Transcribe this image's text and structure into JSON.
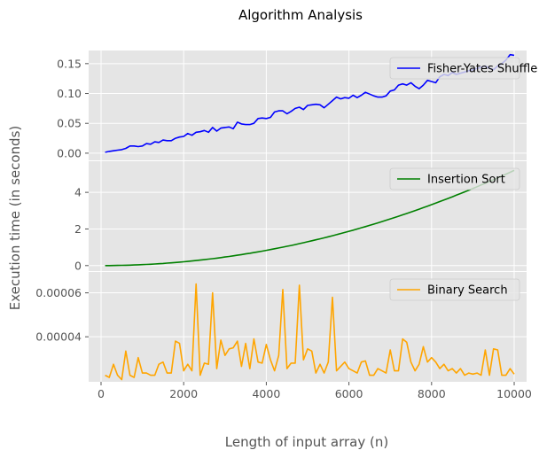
{
  "chart_data": {
    "title": "Algorithm Analysis",
    "xlabel": "Length of input array (n)",
    "ylabel": "Execution time (in seconds)",
    "type": "line",
    "grid": true,
    "shared_x": {
      "xlim": [
        -300,
        10300
      ],
      "ticks": [
        0,
        2000,
        4000,
        6000,
        8000,
        10000
      ],
      "tick_labels": [
        "0",
        "2000",
        "4000",
        "6000",
        "8000",
        "10000"
      ]
    },
    "x": [
      100,
      200,
      300,
      400,
      500,
      600,
      700,
      800,
      900,
      1000,
      1100,
      1200,
      1300,
      1400,
      1500,
      1600,
      1700,
      1800,
      1900,
      2000,
      2100,
      2200,
      2300,
      2400,
      2500,
      2600,
      2700,
      2800,
      2900,
      3000,
      3100,
      3200,
      3300,
      3400,
      3500,
      3600,
      3700,
      3800,
      3900,
      4000,
      4100,
      4200,
      4300,
      4400,
      4500,
      4600,
      4700,
      4800,
      4900,
      5000,
      5100,
      5200,
      5300,
      5400,
      5500,
      5600,
      5700,
      5800,
      5900,
      6000,
      6100,
      6200,
      6300,
      6400,
      6500,
      6600,
      6700,
      6800,
      6900,
      7000,
      7100,
      7200,
      7300,
      7400,
      7500,
      7600,
      7700,
      7800,
      7900,
      8000,
      8100,
      8200,
      8300,
      8400,
      8500,
      8600,
      8700,
      8800,
      8900,
      9000,
      9100,
      9200,
      9300,
      9400,
      9500,
      9600,
      9700,
      9800,
      9900,
      10000
    ],
    "panels": [
      {
        "series_name": "Fisher-Yates Shuffle",
        "color": "#0000ff",
        "legend_position": "upper right",
        "ylim": [
          -0.012,
          0.172
        ],
        "ticks": [
          0.0,
          0.05,
          0.1,
          0.15
        ],
        "tick_labels": [
          "0.00",
          "0.05",
          "0.10",
          "0.15"
        ],
        "values": [
          0.0015,
          0.003,
          0.004,
          0.005,
          0.006,
          0.008,
          0.012,
          0.012,
          0.011,
          0.012,
          0.016,
          0.015,
          0.019,
          0.018,
          0.022,
          0.021,
          0.021,
          0.025,
          0.027,
          0.028,
          0.033,
          0.03,
          0.035,
          0.036,
          0.038,
          0.035,
          0.043,
          0.037,
          0.042,
          0.043,
          0.044,
          0.041,
          0.052,
          0.049,
          0.048,
          0.048,
          0.05,
          0.058,
          0.059,
          0.058,
          0.06,
          0.069,
          0.071,
          0.071,
          0.066,
          0.07,
          0.075,
          0.077,
          0.073,
          0.08,
          0.081,
          0.082,
          0.081,
          0.076,
          0.082,
          0.088,
          0.094,
          0.091,
          0.093,
          0.092,
          0.097,
          0.093,
          0.097,
          0.102,
          0.099,
          0.096,
          0.094,
          0.094,
          0.096,
          0.104,
          0.106,
          0.114,
          0.116,
          0.114,
          0.118,
          0.112,
          0.108,
          0.114,
          0.122,
          0.12,
          0.118,
          0.128,
          0.132,
          0.13,
          0.135,
          0.132,
          0.134,
          0.136,
          0.138,
          0.14,
          0.142,
          0.144,
          0.146,
          0.142,
          0.14,
          0.146,
          0.15,
          0.156,
          0.165,
          0.164
        ]
      },
      {
        "series_name": "Insertion Sort",
        "color": "#008000",
        "legend_position": "upper right",
        "ylim": [
          -0.3,
          5.7
        ],
        "ticks": [
          0,
          2,
          4
        ],
        "tick_labels": [
          "0",
          "2",
          "4"
        ],
        "values": [
          0.0005,
          0.0021,
          0.0047,
          0.0083,
          0.013,
          0.0187,
          0.0255,
          0.0333,
          0.0421,
          0.052,
          0.0629,
          0.0749,
          0.0879,
          0.1019,
          0.117,
          0.1331,
          0.1503,
          0.1685,
          0.1877,
          0.208,
          0.2293,
          0.2517,
          0.2751,
          0.2996,
          0.325,
          0.3516,
          0.3791,
          0.4077,
          0.4373,
          0.468,
          0.4997,
          0.5325,
          0.5663,
          0.6011,
          0.637,
          0.6739,
          0.7118,
          0.7508,
          0.7909,
          0.832,
          0.8741,
          0.9173,
          0.9615,
          1.0067,
          1.053,
          1.1003,
          1.1487,
          1.1981,
          1.2485,
          1.3,
          1.3525,
          1.4061,
          1.4607,
          1.5163,
          1.573,
          1.6307,
          1.6895,
          1.7493,
          1.8101,
          1.872,
          1.9349,
          1.9989,
          2.0639,
          2.1299,
          2.197,
          2.2651,
          2.3343,
          2.4045,
          2.4757,
          2.548,
          2.6213,
          2.6957,
          2.7711,
          2.8475,
          2.925,
          3.0035,
          3.0831,
          3.1637,
          3.2453,
          3.328,
          3.4117,
          3.4965,
          3.5823,
          3.6691,
          3.757,
          3.8459,
          3.9359,
          4.0269,
          4.1189,
          4.212,
          4.3061,
          4.4013,
          4.4975,
          4.5947,
          4.693,
          4.7923,
          4.8927,
          4.9941,
          5.0965,
          5.2
        ]
      },
      {
        "series_name": "Binary Search",
        "color": "#ffa500",
        "legend_position": "upper right",
        "ylim": [
          1.95e-05,
          6.95e-05
        ],
        "ticks": [
          4e-05,
          6e-05
        ],
        "tick_labels": [
          "0.00004",
          "0.00006"
        ],
        "values": [
          2.25e-05,
          2.15e-05,
          2.75e-05,
          2.25e-05,
          2.05e-05,
          3.35e-05,
          2.25e-05,
          2.15e-05,
          3.05e-05,
          2.35e-05,
          2.35e-05,
          2.25e-05,
          2.25e-05,
          2.75e-05,
          2.85e-05,
          2.35e-05,
          2.35e-05,
          3.8e-05,
          3.7e-05,
          2.45e-05,
          2.75e-05,
          2.45e-05,
          6.4e-05,
          2.25e-05,
          2.8e-05,
          2.75e-05,
          6e-05,
          2.55e-05,
          3.85e-05,
          3.15e-05,
          3.45e-05,
          3.5e-05,
          3.8e-05,
          2.65e-05,
          3.7e-05,
          2.55e-05,
          3.9e-05,
          2.85e-05,
          2.8e-05,
          3.65e-05,
          2.95e-05,
          2.45e-05,
          3.15e-05,
          6.15e-05,
          2.55e-05,
          2.8e-05,
          2.8e-05,
          6.35e-05,
          2.95e-05,
          3.45e-05,
          3.35e-05,
          2.35e-05,
          2.75e-05,
          2.35e-05,
          2.85e-05,
          5.8e-05,
          2.45e-05,
          2.65e-05,
          2.85e-05,
          2.55e-05,
          2.45e-05,
          2.35e-05,
          2.85e-05,
          2.9e-05,
          2.25e-05,
          2.25e-05,
          2.55e-05,
          2.45e-05,
          2.35e-05,
          3.4e-05,
          2.45e-05,
          2.45e-05,
          3.9e-05,
          3.75e-05,
          2.85e-05,
          2.45e-05,
          2.75e-05,
          3.55e-05,
          2.85e-05,
          3.05e-05,
          2.85e-05,
          2.55e-05,
          2.75e-05,
          2.45e-05,
          2.55e-05,
          2.35e-05,
          2.55e-05,
          2.25e-05,
          2.35e-05,
          2.3e-05,
          2.35e-05,
          2.25e-05,
          3.4e-05,
          2.25e-05,
          3.45e-05,
          3.4e-05,
          2.25e-05,
          2.25e-05,
          2.55e-05,
          2.3e-05
        ]
      }
    ]
  }
}
